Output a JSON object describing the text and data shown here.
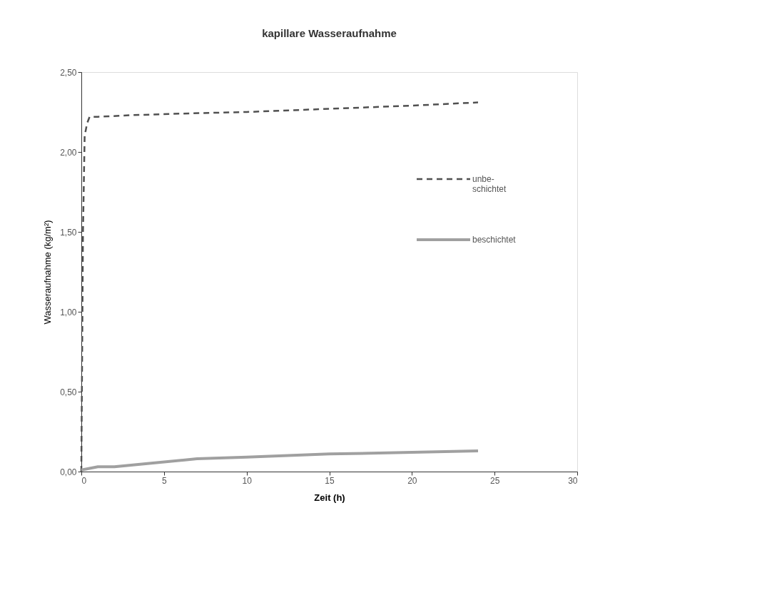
{
  "chart_data": {
    "type": "line",
    "title": "kapillare Wasseraufnahme",
    "xlabel": "Zeit (h)",
    "ylabel": "Wasseraufnahme (kg/m²)",
    "xlim": [
      0,
      30
    ],
    "xticks": [
      0,
      5,
      10,
      15,
      20,
      25,
      30
    ],
    "ylim": [
      0,
      2.5
    ],
    "yticks": [
      {
        "value": 0,
        "label": "0,00"
      },
      {
        "value": 0.5,
        "label": "0,50"
      },
      {
        "value": 1,
        "label": "1,00"
      },
      {
        "value": 1.5,
        "label": "1,50"
      },
      {
        "value": 2,
        "label": "2,00"
      },
      {
        "value": 2.5,
        "label": "2,50"
      }
    ],
    "grid": false,
    "legend": "right",
    "marker": "none",
    "series": [
      {
        "name": "unbe-\nschichtet",
        "color": "#505050",
        "line_style": "dashed",
        "x": [
          0,
          0.1,
          0.2,
          0.35,
          0.5,
          1,
          3,
          6,
          10,
          15,
          20,
          24
        ],
        "values": [
          0,
          1.5,
          2.1,
          2.18,
          2.22,
          2.22,
          2.23,
          2.24,
          2.25,
          2.27,
          2.29,
          2.31
        ]
      },
      {
        "name": "beschichtet",
        "color": "#a0a0a0",
        "line_style": "solid",
        "x": [
          0,
          0.5,
          1,
          2,
          4,
          7,
          10,
          15,
          20,
          24
        ],
        "values": [
          0.01,
          0.02,
          0.03,
          0.03,
          0.05,
          0.08,
          0.09,
          0.11,
          0.12,
          0.13
        ]
      }
    ]
  }
}
